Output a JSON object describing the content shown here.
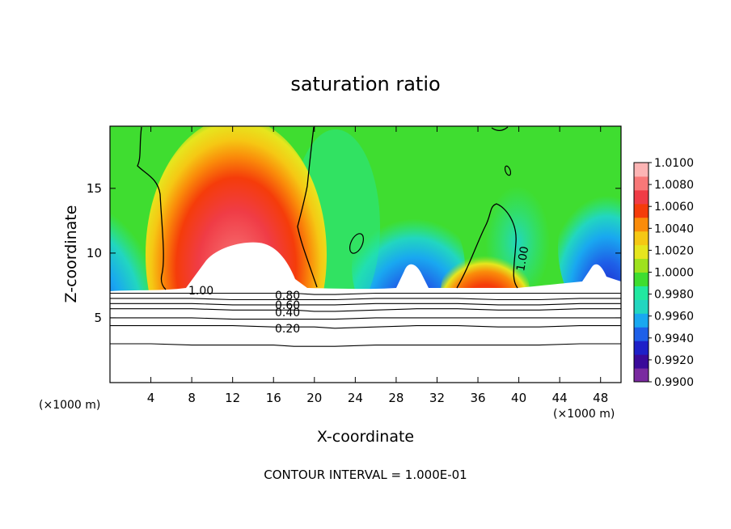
{
  "chart_data": {
    "type": "heatmap",
    "title": "saturation ratio",
    "xlabel": "X-coordinate",
    "ylabel": "Z-coordinate",
    "x_unit": "(×1000 m)",
    "y_unit": "(×1000 m)",
    "xlim": [
      0,
      50
    ],
    "ylim": [
      0,
      19.8
    ],
    "x_ticks": [
      4,
      8,
      12,
      16,
      20,
      24,
      28,
      32,
      36,
      40,
      44,
      48
    ],
    "y_ticks": [
      5,
      10,
      15
    ],
    "colorbar": {
      "min": 0.99,
      "max": 1.01,
      "tick_values": [
        0.99,
        0.992,
        0.994,
        0.996,
        0.998,
        1.0,
        1.002,
        1.004,
        1.006,
        1.008,
        1.01
      ],
      "tick_labels": [
        "0.9900",
        "0.9920",
        "0.9940",
        "0.9960",
        "0.9980",
        "1.0000",
        "1.0020",
        "1.0040",
        "1.0060",
        "1.0080",
        "1.0100"
      ],
      "colors": [
        "#7a2aa0",
        "#3a0a9a",
        "#1e20c8",
        "#1e60e8",
        "#19a8f0",
        "#22d6c0",
        "#21e8a0",
        "#3fdd30",
        "#9ee21e",
        "#e6e61e",
        "#f5c814",
        "#fa8c0a",
        "#f53c0a",
        "#f03c46",
        "#f87878",
        "#fcb4b4"
      ]
    },
    "line_contours": [
      {
        "label": "0.20",
        "z": [
          4.4,
          4.4,
          4.4,
          4.4,
          4.3,
          4.3,
          4.3,
          4.2,
          4.3,
          4.4,
          4.4,
          4.3,
          4.3,
          4.4,
          4.4
        ]
      },
      {
        "label": "0.40",
        "z": [
          5.7,
          5.7,
          5.7,
          5.6,
          5.6,
          5.6,
          5.5,
          5.5,
          5.6,
          5.7,
          5.7,
          5.6,
          5.6,
          5.7,
          5.7
        ]
      },
      {
        "label": "0.60",
        "z": [
          6.5,
          6.5,
          6.5,
          6.4,
          6.4,
          6.4,
          6.4,
          6.4,
          6.5,
          6.5,
          6.5,
          6.4,
          6.4,
          6.5,
          6.5
        ]
      },
      {
        "label": "0.80",
        "z": [
          6.9,
          6.9,
          6.9,
          6.9,
          6.9,
          6.9,
          6.8,
          6.8,
          6.9,
          6.9,
          6.9,
          6.9,
          6.9,
          6.9,
          6.9
        ]
      },
      {
        "label": "",
        "z": [
          3.0,
          3.0,
          2.9,
          2.9,
          2.9,
          2.8,
          2.8,
          2.8,
          2.9,
          2.9,
          2.9,
          2.9,
          2.9,
          3.0,
          3.0
        ]
      },
      {
        "label": "",
        "z": [
          5.0,
          5.0,
          5.0,
          4.9,
          4.9,
          4.9,
          4.9,
          4.9,
          5.0,
          5.0,
          5.0,
          5.0,
          5.0,
          5.0,
          5.0
        ]
      },
      {
        "label": "",
        "z": [
          6.1,
          6.1,
          6.1,
          6.0,
          6.0,
          6.0,
          6.0,
          6.0,
          6.1,
          6.1,
          6.1,
          6.0,
          6.0,
          6.1,
          6.1
        ]
      }
    ],
    "line_contour_x": [
      0,
      4,
      8,
      12,
      16,
      18,
      20,
      22,
      26,
      30,
      34,
      38,
      42,
      46,
      50
    ],
    "contour_labels_shown": [
      "1.00",
      "0.80",
      "0.60",
      "0.40",
      "0.20",
      "1.00"
    ],
    "grid": false
  },
  "footer": {
    "contour_interval": "CONTOUR INTERVAL = 1.000E-01"
  }
}
